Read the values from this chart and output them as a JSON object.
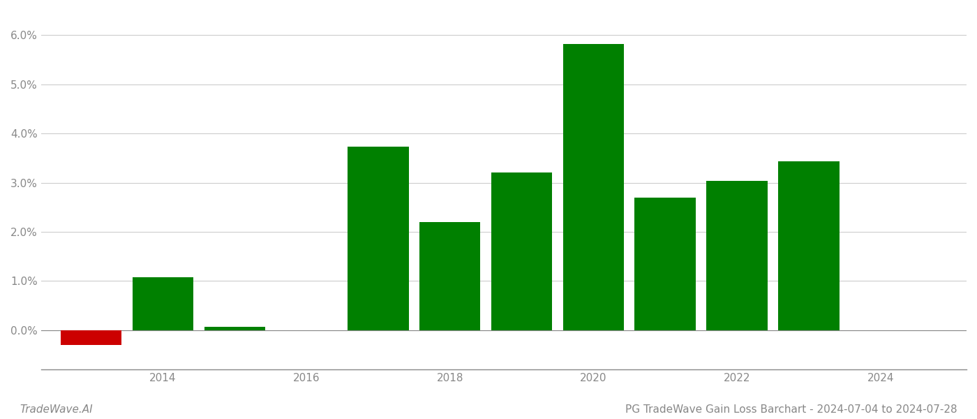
{
  "years": [
    2013,
    2014,
    2015,
    2017,
    2018,
    2019,
    2020,
    2021,
    2022,
    2023
  ],
  "values": [
    -0.003,
    0.0107,
    0.0007,
    0.0373,
    0.022,
    0.032,
    0.0582,
    0.027,
    0.0303,
    0.0343
  ],
  "colors": [
    "#cc0000",
    "#008000",
    "#008000",
    "#008000",
    "#008000",
    "#008000",
    "#008000",
    "#008000",
    "#008000",
    "#008000"
  ],
  "title": "PG TradeWave Gain Loss Barchart - 2024-07-04 to 2024-07-28",
  "watermark": "TradeWave.AI",
  "ylim": [
    -0.008,
    0.065
  ],
  "yticks": [
    0.0,
    0.01,
    0.02,
    0.03,
    0.04,
    0.05,
    0.06
  ],
  "xlim": [
    2012.3,
    2025.2
  ],
  "xticks": [
    2014,
    2016,
    2018,
    2020,
    2022,
    2024
  ],
  "background_color": "#ffffff",
  "grid_color": "#cccccc",
  "bar_width": 0.85,
  "title_fontsize": 11,
  "watermark_fontsize": 11,
  "tick_fontsize": 11,
  "tick_color": "#888888",
  "spine_color": "#888888"
}
